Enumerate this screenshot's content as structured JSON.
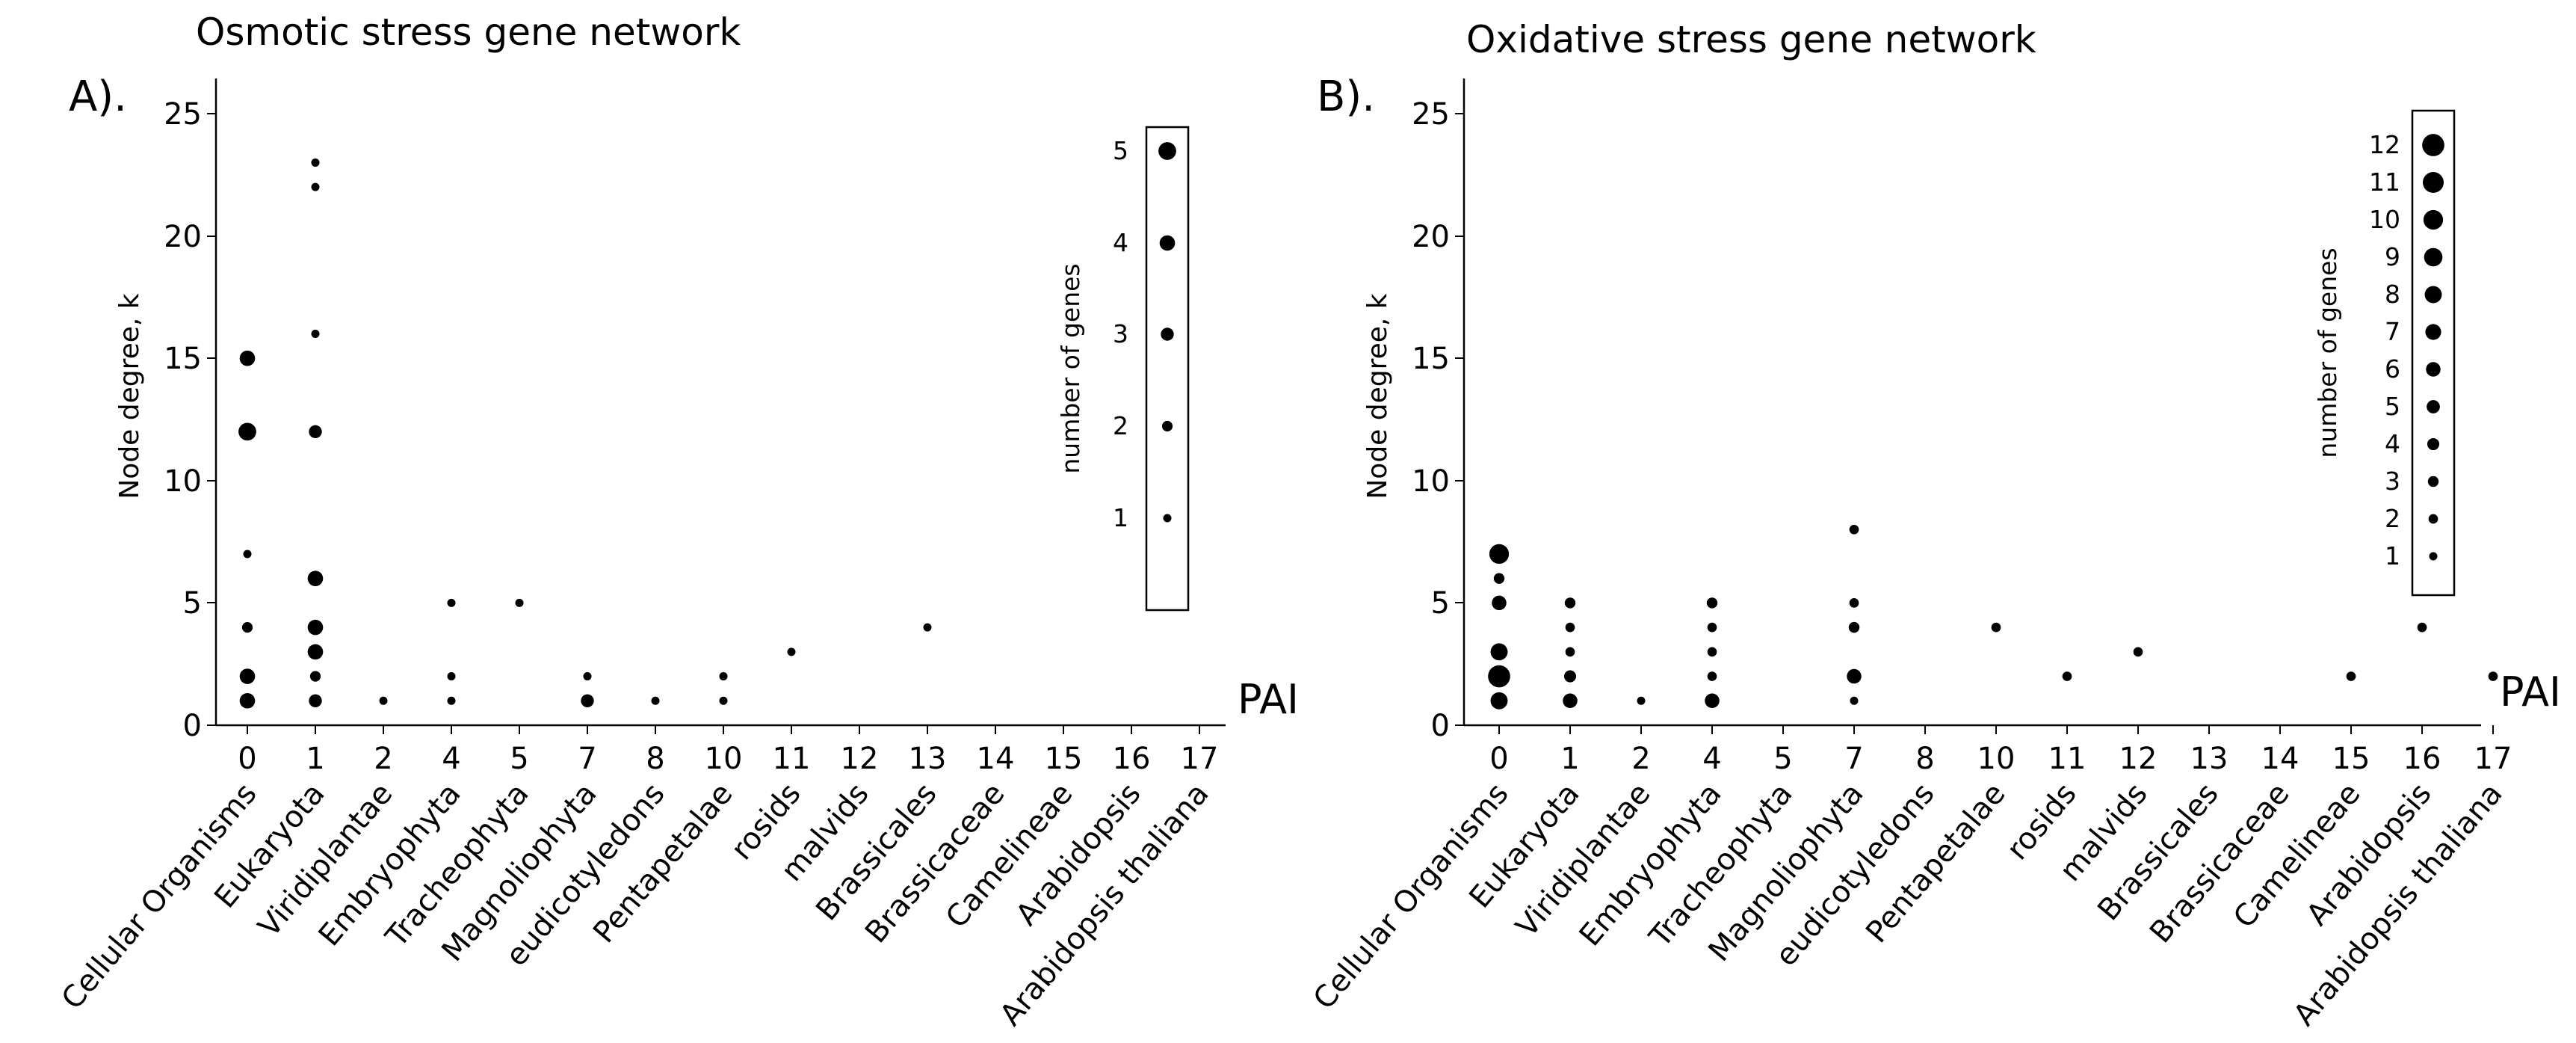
{
  "chart_data": [
    {
      "type": "scatter",
      "panel_label": "A).",
      "title": "Osmotic stress gene network",
      "ylabel": "Node degree, k",
      "xlabel": "PAI",
      "ylim": [
        0,
        25
      ],
      "yticks": [
        0,
        5,
        10,
        15,
        20,
        25
      ],
      "x_ticks": [
        "0",
        "1",
        "2",
        "4",
        "5",
        "7",
        "8",
        "10",
        "11",
        "12",
        "13",
        "14",
        "15",
        "16",
        "17"
      ],
      "categories": [
        "Cellular Organisms",
        "Eukaryota",
        "Viridiplantae",
        "Embryophyta",
        "Tracheophyta",
        "Magnoliophyta",
        "eudicotyledons",
        "Pentapetalae",
        "rosids",
        "malvids",
        "Brassicales",
        "Brassicaceae",
        "Camelineae",
        "Arabidopsis",
        "Arabidopsis thaliana"
      ],
      "size_legend": {
        "title": "number of genes",
        "values": [
          1,
          2,
          3,
          4,
          5
        ]
      },
      "points": [
        {
          "pai": "0",
          "k": 1,
          "n": 4
        },
        {
          "pai": "0",
          "k": 2,
          "n": 4
        },
        {
          "pai": "0",
          "k": 4,
          "n": 2
        },
        {
          "pai": "0",
          "k": 7,
          "n": 1
        },
        {
          "pai": "0",
          "k": 12,
          "n": 5
        },
        {
          "pai": "0",
          "k": 15,
          "n": 4
        },
        {
          "pai": "1",
          "k": 1,
          "n": 3
        },
        {
          "pai": "1",
          "k": 2,
          "n": 2
        },
        {
          "pai": "1",
          "k": 3,
          "n": 4
        },
        {
          "pai": "1",
          "k": 4,
          "n": 4
        },
        {
          "pai": "1",
          "k": 6,
          "n": 4
        },
        {
          "pai": "1",
          "k": 12,
          "n": 3
        },
        {
          "pai": "1",
          "k": 16,
          "n": 1
        },
        {
          "pai": "1",
          "k": 22,
          "n": 1
        },
        {
          "pai": "1",
          "k": 23,
          "n": 1
        },
        {
          "pai": "2",
          "k": 1,
          "n": 1
        },
        {
          "pai": "4",
          "k": 1,
          "n": 1
        },
        {
          "pai": "4",
          "k": 2,
          "n": 1
        },
        {
          "pai": "4",
          "k": 5,
          "n": 1
        },
        {
          "pai": "5",
          "k": 5,
          "n": 1
        },
        {
          "pai": "7",
          "k": 1,
          "n": 3
        },
        {
          "pai": "7",
          "k": 2,
          "n": 1
        },
        {
          "pai": "8",
          "k": 1,
          "n": 1
        },
        {
          "pai": "10",
          "k": 1,
          "n": 1
        },
        {
          "pai": "10",
          "k": 2,
          "n": 1
        },
        {
          "pai": "11",
          "k": 3,
          "n": 1
        },
        {
          "pai": "13",
          "k": 4,
          "n": 1
        }
      ]
    },
    {
      "type": "scatter",
      "panel_label": "B).",
      "title": "Oxidative stress gene network",
      "ylabel": "Node degree, k",
      "xlabel": "PAI",
      "ylim": [
        0,
        25
      ],
      "yticks": [
        0,
        5,
        10,
        15,
        20,
        25
      ],
      "x_ticks": [
        "0",
        "1",
        "2",
        "4",
        "5",
        "7",
        "8",
        "10",
        "11",
        "12",
        "13",
        "14",
        "15",
        "16",
        "17"
      ],
      "categories": [
        "Cellular Organisms",
        "Eukaryota",
        "Viridiplantae",
        "Embryophyta",
        "Tracheophyta",
        "Magnoliophyta",
        "eudicotyledons",
        "Pentapetalae",
        "rosids",
        "malvids",
        "Brassicales",
        "Brassicaceae",
        "Camelineae",
        "Arabidopsis",
        "Arabidopsis thaliana"
      ],
      "size_legend": {
        "title": "number of genes",
        "values": [
          1,
          2,
          3,
          4,
          5,
          6,
          7,
          8,
          9,
          10,
          11,
          12
        ]
      },
      "points": [
        {
          "pai": "0",
          "k": 1,
          "n": 8
        },
        {
          "pai": "0",
          "k": 2,
          "n": 12
        },
        {
          "pai": "0",
          "k": 3,
          "n": 8
        },
        {
          "pai": "0",
          "k": 5,
          "n": 6
        },
        {
          "pai": "0",
          "k": 6,
          "n": 3
        },
        {
          "pai": "0",
          "k": 7,
          "n": 10
        },
        {
          "pai": "1",
          "k": 1,
          "n": 6
        },
        {
          "pai": "1",
          "k": 2,
          "n": 4
        },
        {
          "pai": "1",
          "k": 3,
          "n": 2
        },
        {
          "pai": "1",
          "k": 4,
          "n": 2
        },
        {
          "pai": "1",
          "k": 5,
          "n": 3
        },
        {
          "pai": "2",
          "k": 1,
          "n": 1
        },
        {
          "pai": "4",
          "k": 1,
          "n": 6
        },
        {
          "pai": "4",
          "k": 2,
          "n": 2
        },
        {
          "pai": "4",
          "k": 3,
          "n": 2
        },
        {
          "pai": "4",
          "k": 4,
          "n": 2
        },
        {
          "pai": "4",
          "k": 5,
          "n": 3
        },
        {
          "pai": "7",
          "k": 1,
          "n": 1
        },
        {
          "pai": "7",
          "k": 2,
          "n": 6
        },
        {
          "pai": "7",
          "k": 4,
          "n": 3
        },
        {
          "pai": "7",
          "k": 5,
          "n": 2
        },
        {
          "pai": "7",
          "k": 8,
          "n": 2
        },
        {
          "pai": "10",
          "k": 4,
          "n": 2
        },
        {
          "pai": "11",
          "k": 2,
          "n": 2
        },
        {
          "pai": "12",
          "k": 3,
          "n": 2
        },
        {
          "pai": "15",
          "k": 2,
          "n": 2
        },
        {
          "pai": "16",
          "k": 4,
          "n": 2
        },
        {
          "pai": "17",
          "k": 2,
          "n": 2
        }
      ]
    }
  ]
}
